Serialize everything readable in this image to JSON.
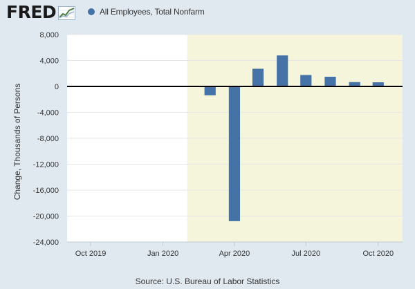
{
  "header": {
    "logo_text": "FRED",
    "logo_mark": "fred-chart-logo-icon",
    "legend_label": "All Employees, Total Nonfarm",
    "legend_color": "#4572a7"
  },
  "colors": {
    "background": "#e1e9f0",
    "plot_background": "#ffffff",
    "recession_shade": "#f5f5dc",
    "bar": "#4572a7",
    "zero_line": "#000000",
    "grid": "#e6e6e6"
  },
  "chart_data": {
    "type": "bar",
    "title": "",
    "xlabel": "",
    "ylabel": "Change, Thousands of Persons",
    "ylim": [
      -24000,
      8000
    ],
    "yticks": [
      8000,
      4000,
      0,
      -4000,
      -8000,
      -12000,
      -16000,
      -20000,
      -24000
    ],
    "ytick_labels": [
      "8,000",
      "4,000",
      "0",
      "-4,000",
      "-8,000",
      "-12,000",
      "-16,000",
      "-20,000",
      "-24,000"
    ],
    "xlim": [
      "2019-09-01",
      "2020-11-01"
    ],
    "xticks": [
      "2019-10-01",
      "2020-01-01",
      "2020-04-01",
      "2020-07-01",
      "2020-10-01"
    ],
    "xtick_labels": [
      "Oct 2019",
      "Jan 2020",
      "Apr 2020",
      "Jul 2020",
      "Oct 2020"
    ],
    "recession": {
      "start": "2020-02-01",
      "end": "2020-11-01"
    },
    "grid": true,
    "series": [
      {
        "name": "All Employees, Total Nonfarm",
        "x": [
          "2020-03-01",
          "2020-04-01",
          "2020-05-01",
          "2020-06-01",
          "2020-07-01",
          "2020-08-01",
          "2020-09-01",
          "2020-10-01"
        ],
        "values": [
          -1373,
          -20787,
          2725,
          4781,
          1761,
          1493,
          672,
          638
        ]
      }
    ]
  },
  "source": "Source: U.S. Bureau of Labor Statistics"
}
